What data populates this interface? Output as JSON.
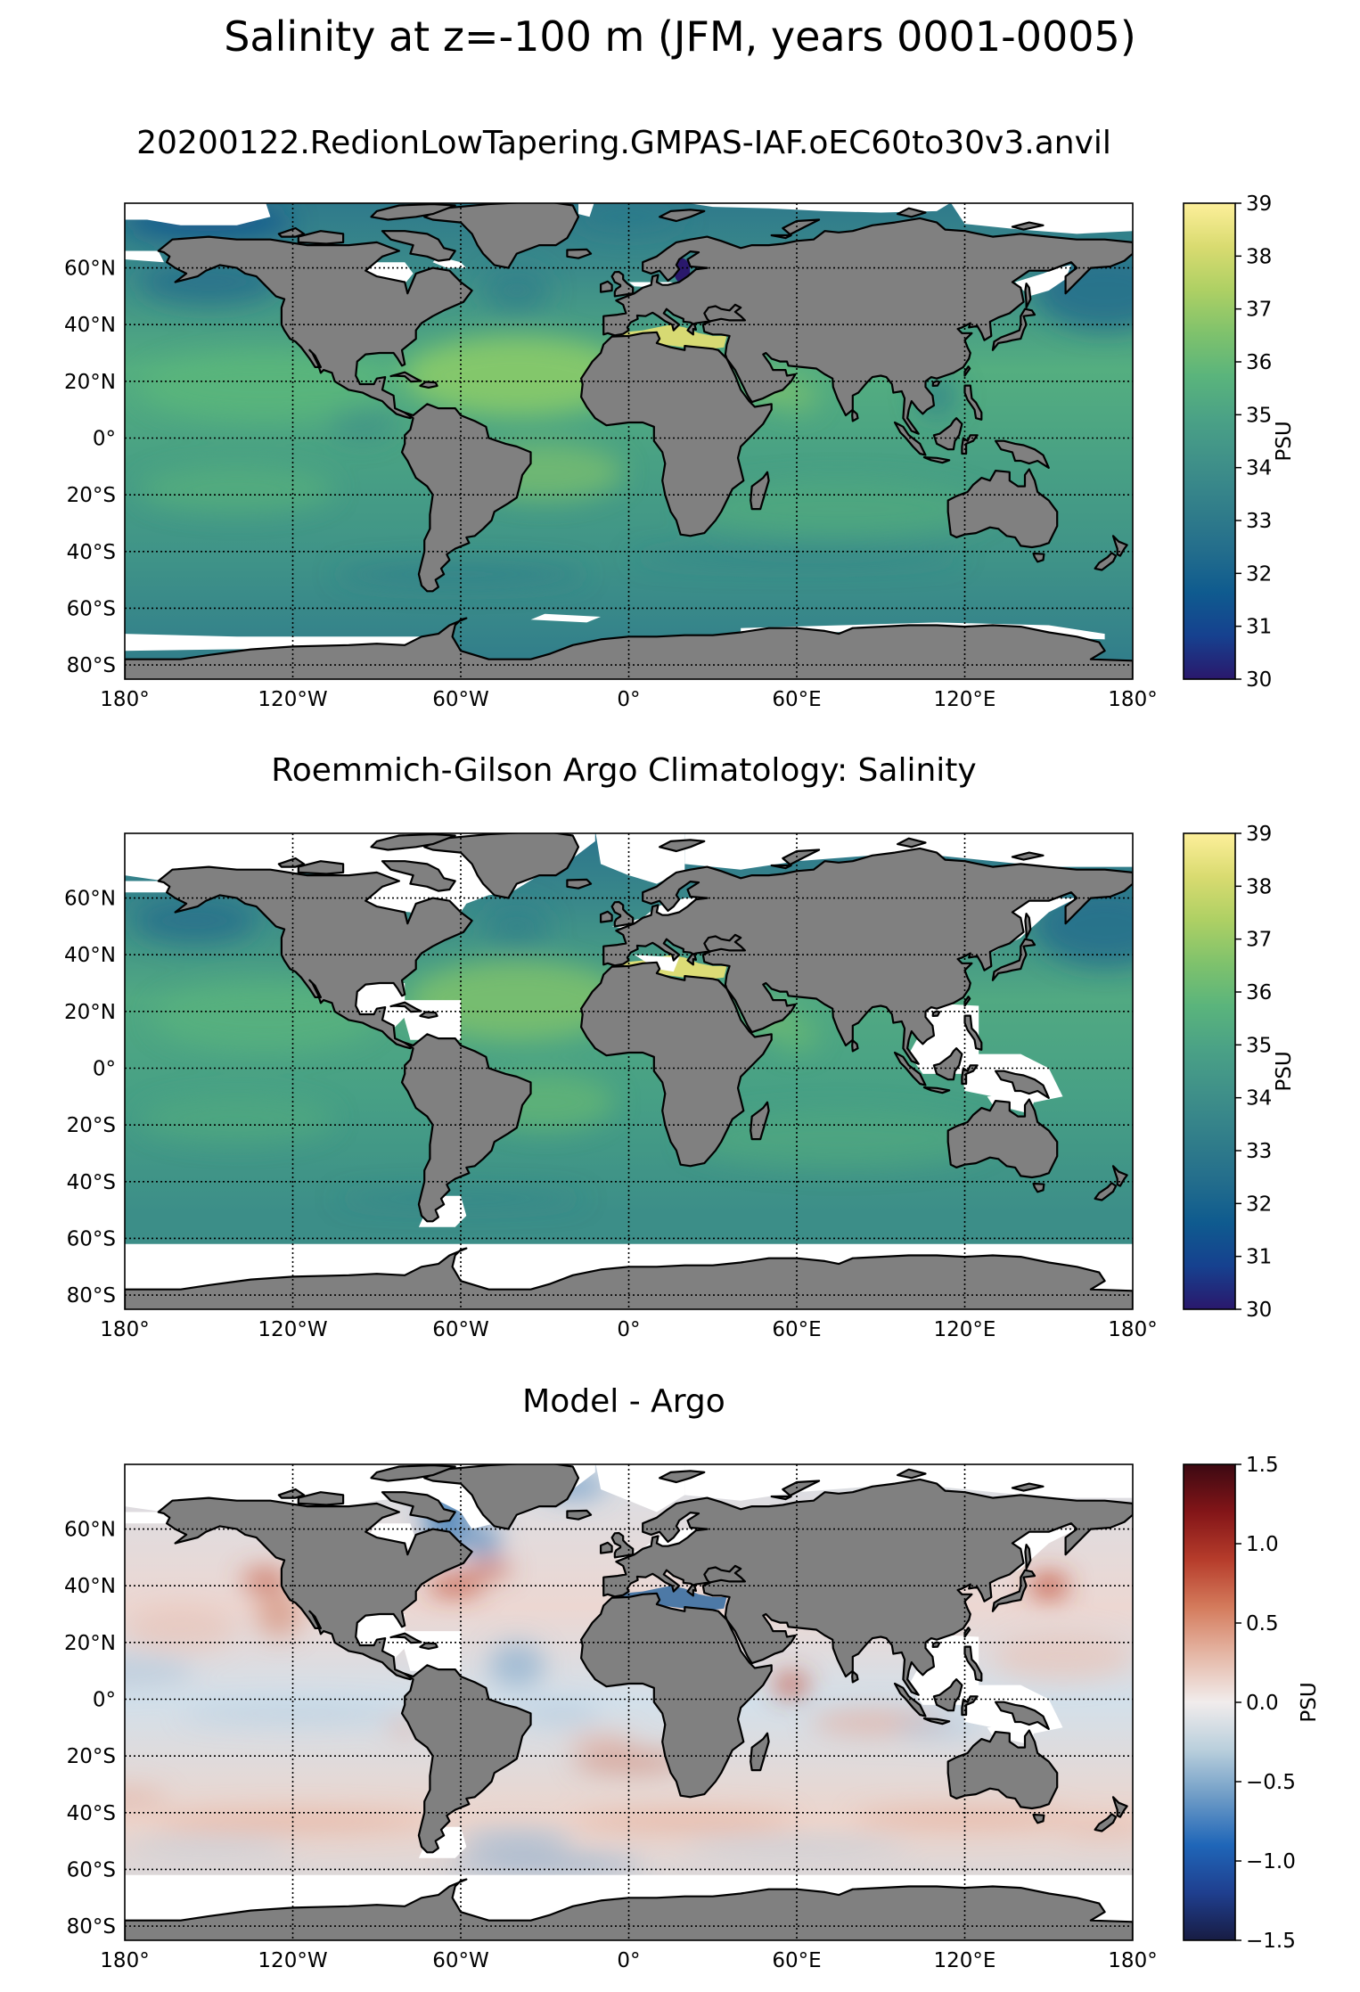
{
  "title": "Salinity at z=-100 m (JFM, years 0001-0005)",
  "panels": [
    {
      "title": "20200122.RedionLowTapering.GMPAS-IAF.oEC60to30v3.anvil",
      "colorbar": {
        "label": "PSU",
        "colormap": "haline",
        "colors": [
          "#2a186c",
          "#16418f",
          "#0f5b8f",
          "#246e8c",
          "#327f8a",
          "#3f9089",
          "#4aa186",
          "#5ab47c",
          "#7fc26c",
          "#aed064",
          "#d9db70",
          "#fdef9a"
        ],
        "ticks": [
          "30",
          "31",
          "32",
          "33",
          "34",
          "35",
          "36",
          "37",
          "38",
          "39"
        ]
      }
    },
    {
      "title": "Roemmich-Gilson Argo Climatology: Salinity",
      "colorbar": {
        "label": "PSU",
        "colormap": "haline",
        "colors": [
          "#2a186c",
          "#16418f",
          "#0f5b8f",
          "#246e8c",
          "#327f8a",
          "#3f9089",
          "#4aa186",
          "#5ab47c",
          "#7fc26c",
          "#aed064",
          "#d9db70",
          "#fdef9a"
        ],
        "ticks": [
          "30",
          "31",
          "32",
          "33",
          "34",
          "35",
          "36",
          "37",
          "38",
          "39"
        ]
      }
    },
    {
      "title": "Model - Argo",
      "colorbar": {
        "label": "PSU",
        "colormap": "balance",
        "colors": [
          "#181c43",
          "#1f3f8f",
          "#1f66b8",
          "#6d9bc6",
          "#b9cfdc",
          "#f1ecec",
          "#e5b7a6",
          "#d47b5c",
          "#b63c2b",
          "#831518",
          "#3c0912"
        ],
        "ticks": [
          "−1.5",
          "−1.0",
          "−0.5",
          "0.0",
          "0.5",
          "1.0",
          "1.5"
        ]
      }
    }
  ],
  "map": {
    "lat_ticks": [
      "60°N",
      "40°N",
      "20°N",
      "0°",
      "20°S",
      "40°S",
      "60°S",
      "80°S"
    ],
    "lon_ticks": [
      "180°",
      "120°W",
      "60°W",
      "0°",
      "60°E",
      "120°E",
      "180°"
    ],
    "land_color": "#808080"
  }
}
